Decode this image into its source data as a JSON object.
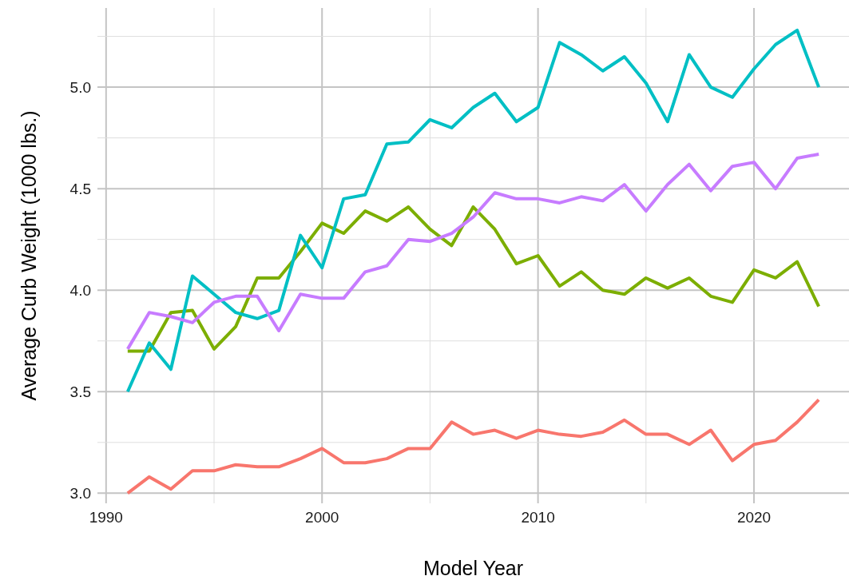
{
  "chart_data": {
    "type": "line",
    "xlabel": "Model Year",
    "ylabel": "Average Curb Weight (1000 lbs.)",
    "x": [
      1991,
      1992,
      1993,
      1994,
      1995,
      1996,
      1997,
      1998,
      1999,
      2000,
      2001,
      2002,
      2003,
      2004,
      2005,
      2006,
      2007,
      2008,
      2009,
      2010,
      2011,
      2012,
      2013,
      2014,
      2015,
      2016,
      2017,
      2018,
      2019,
      2020,
      2021,
      2022,
      2023
    ],
    "series": [
      {
        "color": "#f8766d",
        "values": [
          3.0,
          3.08,
          3.02,
          3.11,
          3.11,
          3.14,
          3.13,
          3.13,
          3.17,
          3.22,
          3.15,
          3.15,
          3.17,
          3.22,
          3.22,
          3.35,
          3.29,
          3.31,
          3.27,
          3.31,
          3.29,
          3.28,
          3.3,
          3.36,
          3.29,
          3.29,
          3.24,
          3.31,
          3.16,
          3.24,
          3.26,
          3.35,
          3.46
        ]
      },
      {
        "color": "#7cae00",
        "values": [
          3.7,
          3.7,
          3.89,
          3.9,
          3.71,
          3.82,
          4.06,
          4.06,
          4.19,
          4.33,
          4.28,
          4.39,
          4.34,
          4.41,
          4.3,
          4.22,
          4.41,
          4.3,
          4.13,
          4.17,
          4.02,
          4.09,
          4.0,
          3.98,
          4.06,
          4.01,
          4.06,
          3.97,
          3.94,
          4.1,
          4.06,
          4.14,
          3.92
        ]
      },
      {
        "color": "#00bfc4",
        "values": [
          3.5,
          3.74,
          3.61,
          4.07,
          3.98,
          3.89,
          3.86,
          3.9,
          4.27,
          4.11,
          4.45,
          4.47,
          4.72,
          4.73,
          4.84,
          4.8,
          4.9,
          4.97,
          4.83,
          4.9,
          5.22,
          5.16,
          5.08,
          5.15,
          5.02,
          4.83,
          5.16,
          5.0,
          4.95,
          5.09,
          5.21,
          5.28,
          5.0
        ]
      },
      {
        "color": "#c77cff",
        "values": [
          3.71,
          3.89,
          3.87,
          3.84,
          3.94,
          3.97,
          3.97,
          3.8,
          3.98,
          3.96,
          3.96,
          4.09,
          4.12,
          4.25,
          4.24,
          4.28,
          4.36,
          4.48,
          4.45,
          4.45,
          4.43,
          4.46,
          4.44,
          4.52,
          4.39,
          4.52,
          4.62,
          4.49,
          4.61,
          4.63,
          4.5,
          4.65,
          4.67
        ]
      }
    ],
    "xlim": [
      1989.6,
      2024.4
    ],
    "ylim": [
      2.95,
      5.39
    ],
    "xticks": [
      1990,
      {
        "value": 1995,
        "label": null
      },
      2000,
      {
        "value": 2005,
        "label": null
      },
      2010,
      {
        "value": 2015,
        "label": null
      },
      2020
    ],
    "yticks": [
      {
        "value": 3,
        "label": "3.0"
      },
      {
        "value": 3.25,
        "label": null
      },
      {
        "value": 3.5,
        "label": "3.5"
      },
      {
        "value": 3.75,
        "label": null
      },
      {
        "value": 4,
        "label": "4.0"
      },
      {
        "value": 4.25,
        "label": null
      },
      {
        "value": 4.5,
        "label": "4.5"
      },
      {
        "value": 4.75,
        "label": null
      },
      {
        "value": 5,
        "label": "5.0"
      },
      {
        "value": 5.25,
        "label": null
      }
    ],
    "grid": true,
    "line_style": "solid"
  }
}
